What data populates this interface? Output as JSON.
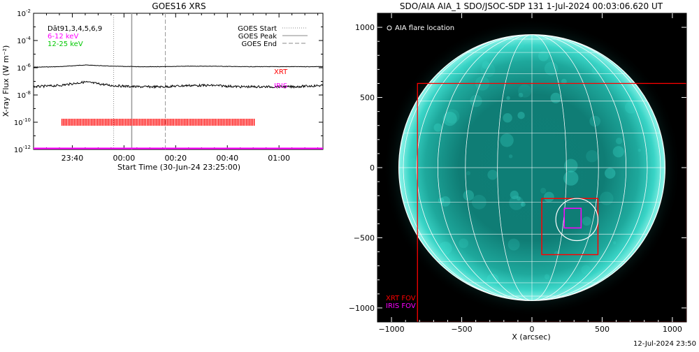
{
  "left_panel": {
    "title": "GOES16 XRS",
    "ylabel": "X-ray Flux (W m⁻²)",
    "xlabel": "Start Time (30-Jun-24 23:25:00)",
    "legend_left": [
      {
        "text": "Dāt91,3,4,5,6,9",
        "color": "#000000"
      },
      {
        "text": "6-12 keV",
        "color": "#ff00ff"
      },
      {
        "text": "12-25 keV",
        "color": "#00c800"
      }
    ],
    "legend_right": [
      {
        "text": "GOES Start",
        "style": "dotted"
      },
      {
        "text": "GOES Peak",
        "style": "solid"
      },
      {
        "text": "GOES End",
        "style": "dashed"
      }
    ],
    "instrument_labels": [
      {
        "text": "XRT",
        "color": "#ff0000"
      },
      {
        "text": "IRIS",
        "color": "#ff00ff"
      }
    ]
  },
  "right_panel": {
    "title": "SDO/AIA AIA_1 SDO/JSOC-SDP 131  1-Jul-2024 00:03:06.620 UT",
    "xlabel": "X (arcsec)",
    "flare_legend": "AIA flare location",
    "fov_labels": [
      {
        "text": "XRT FOV",
        "color": "#ff0000"
      },
      {
        "text": "IRIS FOV",
        "color": "#ff00ff"
      }
    ]
  },
  "timestamp": "12-Jul-2024 23:50",
  "colors": {
    "xrt": "#ff0000",
    "iris": "#ff00ff",
    "aia_disk": "#0e7e76",
    "grid": "#ffffff"
  },
  "chart_data": [
    {
      "type": "line",
      "title": "GOES16 XRS",
      "xlabel": "Start Time (30-Jun-24 23:25:00)",
      "ylabel": "X-ray Flux (W m⁻²)",
      "y_scale": "log",
      "ylim": [
        1e-12,
        0.01
      ],
      "xlim": [
        "23:25",
        "01:17"
      ],
      "x_ticks": [
        "23:40",
        "00:00",
        "00:20",
        "00:40",
        "01:00"
      ],
      "y_ticks": [
        "10^-12",
        "10^-10",
        "10^-8",
        "10^-6",
        "10^-4",
        "10^-2"
      ],
      "series": [
        {
          "name": "12-25 keV",
          "color": "#000000",
          "x": [
            "23:25",
            "23:35",
            "23:45",
            "23:55",
            "00:05",
            "00:15",
            "00:25",
            "00:35",
            "00:45",
            "00:55",
            "01:05",
            "01:17"
          ],
          "y": [
            1.1e-06,
            1.2e-06,
            1.6e-06,
            1.3e-06,
            1.2e-06,
            1.2e-06,
            1.3e-06,
            1.3e-06,
            1.2e-06,
            1.2e-06,
            1.2e-06,
            1.2e-06
          ]
        },
        {
          "name": "6-12 keV",
          "color": "#000000",
          "x": [
            "23:25",
            "23:35",
            "23:45",
            "23:55",
            "00:05",
            "00:15",
            "00:25",
            "00:35",
            "00:45",
            "00:55",
            "01:05",
            "01:17"
          ],
          "y": [
            4e-08,
            5e-08,
            9e-08,
            5e-08,
            4e-08,
            4e-08,
            5e-08,
            5e-08,
            4e-08,
            4e-08,
            4e-08,
            5e-08
          ]
        },
        {
          "name": "IRIS",
          "color": "#ff00ff",
          "x": [
            "23:25",
            "01:17"
          ],
          "y": [
            1.2e-12,
            1.2e-12
          ]
        }
      ],
      "goes_events": {
        "start": "23:56",
        "peak": "00:03",
        "end": "00:16"
      },
      "xrt_obs": {
        "start": "23:36",
        "end": "00:51",
        "level": 1e-10
      }
    },
    {
      "type": "scatter",
      "title": "SDO/AIA AIA_1 SDO/JSOC-SDP 131  1-Jul-2024 00:03:06.620 UT",
      "xlabel": "X (arcsec)",
      "ylabel": "",
      "xlim": [
        -1100,
        1100
      ],
      "ylim": [
        -1100,
        1100
      ],
      "x_ticks": [
        -1000,
        -500,
        0,
        500,
        1000
      ],
      "y_ticks": [
        -1000,
        -500,
        0,
        500,
        1000
      ],
      "solar_radius": 948,
      "flare_location": {
        "x": 320,
        "y": -370,
        "r": 150
      },
      "xrt_fov_large": {
        "x0": -815,
        "y0": -1100,
        "x1": 1100,
        "y1": 600
      },
      "xrt_fov_small": {
        "x0": 70,
        "y0": -620,
        "x1": 470,
        "y1": -220
      },
      "iris_fov": {
        "x0": 230,
        "y0": -430,
        "x1": 350,
        "y1": -290
      }
    }
  ]
}
